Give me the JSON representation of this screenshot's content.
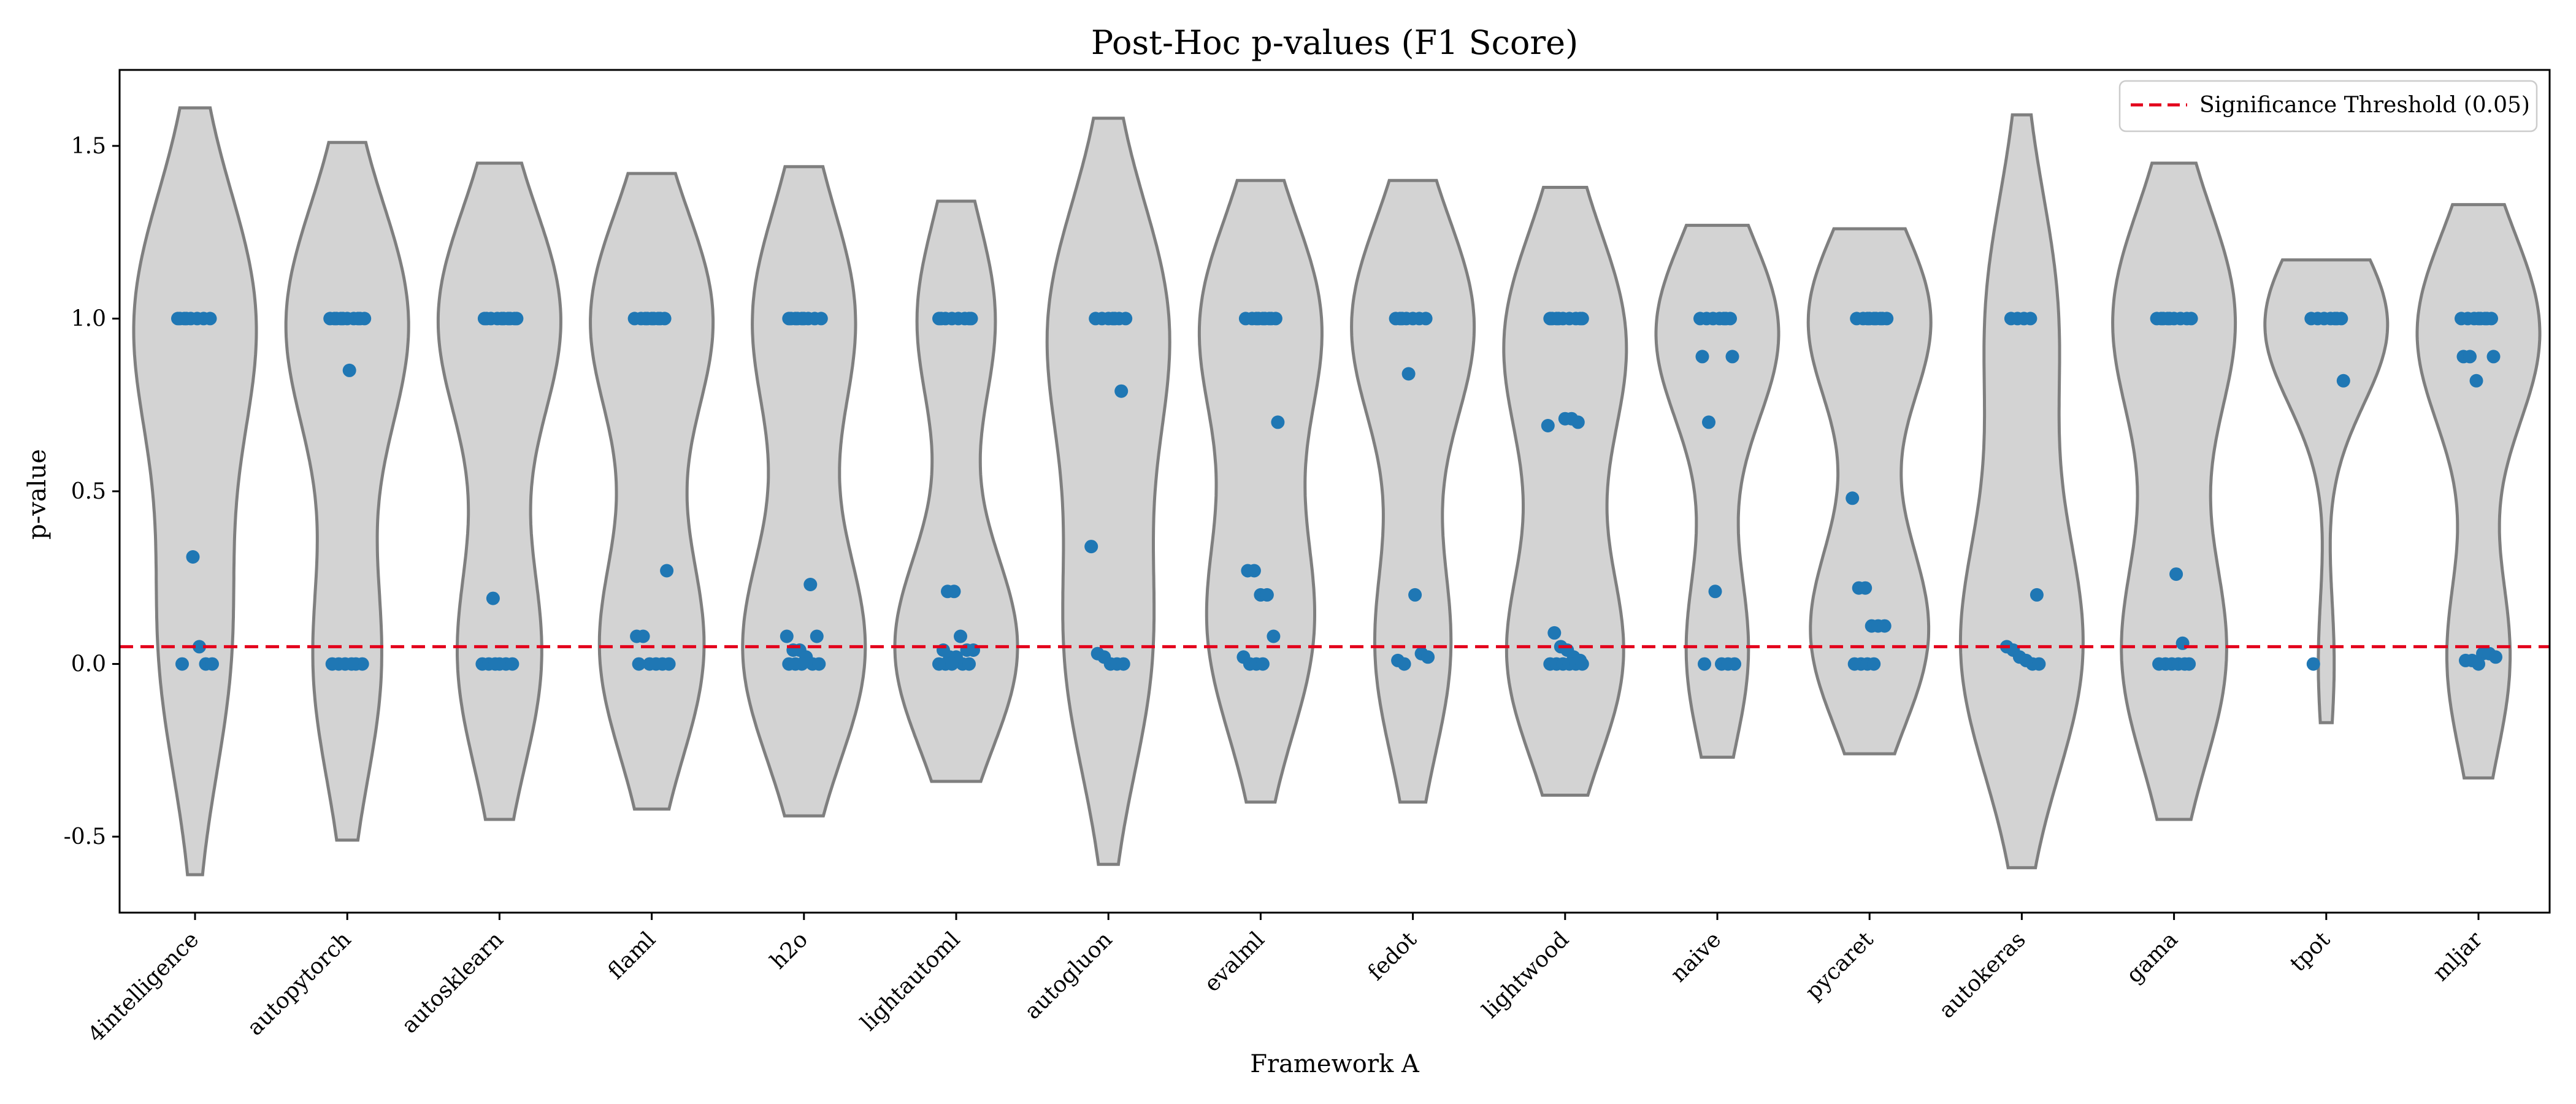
{
  "chart_data": {
    "type": "violin",
    "title": "Post-Hoc p-values (F1 Score)",
    "xlabel": "Framework A",
    "ylabel": "p-value",
    "ylim": [
      -0.72,
      1.72
    ],
    "yticks": [
      -0.5,
      0.0,
      0.5,
      1.0,
      1.5
    ],
    "ytick_labels": [
      "-0.5",
      "0.0",
      "0.5",
      "1.0",
      "1.5"
    ],
    "grid": false,
    "legend": {
      "placement": "top-right",
      "entries": [
        {
          "label": "Significance Threshold (0.05)",
          "style": "dashed",
          "color": "#e3001b"
        }
      ]
    },
    "threshold": {
      "value": 0.05,
      "color": "#e3001b"
    },
    "colors": {
      "violin_fill": "#d3d3d3",
      "violin_edge": "#7f7f7f",
      "point": "#1f77b4"
    },
    "categories": [
      "4intelligence",
      "autopytorch",
      "autosklearn",
      "flaml",
      "h2o",
      "lightautoml",
      "autogluon",
      "evalml",
      "fedot",
      "lightwood",
      "naive",
      "pycaret",
      "autokeras",
      "gama",
      "tpot",
      "mljar"
    ],
    "series": [
      {
        "category": "4intelligence",
        "violin_range": [
          -0.61,
          1.61
        ],
        "points": [
          1,
          1,
          1,
          1,
          1,
          1,
          1,
          1,
          0.31,
          0.05,
          0.0,
          0.0,
          0.0
        ]
      },
      {
        "category": "autopytorch",
        "violin_range": [
          -0.51,
          1.51
        ],
        "points": [
          1,
          1,
          1,
          1,
          1,
          1,
          1,
          1,
          1,
          1,
          0.85,
          0.0,
          0.0,
          0.0,
          0.0,
          0.0,
          0.0
        ]
      },
      {
        "category": "autosklearn",
        "violin_range": [
          -0.45,
          1.45
        ],
        "points": [
          1,
          1,
          1,
          1,
          1,
          1,
          1,
          1,
          1,
          1,
          0.19,
          0.0,
          0.0,
          0.0,
          0.0,
          0.0,
          0.0
        ]
      },
      {
        "category": "flaml",
        "violin_range": [
          -0.42,
          1.42
        ],
        "points": [
          1,
          1,
          1,
          1,
          1,
          1,
          1,
          1,
          1,
          0.27,
          0.08,
          0.08,
          0.0,
          0.0,
          0.0,
          0.0,
          0.0
        ]
      },
      {
        "category": "h2o",
        "violin_range": [
          -0.44,
          1.44
        ],
        "points": [
          1,
          1,
          1,
          1,
          1,
          1,
          1,
          1,
          1,
          0.23,
          0.08,
          0.08,
          0.04,
          0.04,
          0.02,
          0.0,
          0.0,
          0.0,
          0.0,
          0.0
        ]
      },
      {
        "category": "lightautoml",
        "violin_range": [
          -0.34,
          1.34
        ],
        "points": [
          1,
          1,
          1,
          1,
          1,
          1,
          1,
          1,
          0.21,
          0.21,
          0.08,
          0.04,
          0.04,
          0.04,
          0.02,
          0.02,
          0.0,
          0.0,
          0.0,
          0.0,
          0.0
        ]
      },
      {
        "category": "autogluon",
        "violin_range": [
          -0.58,
          1.58
        ],
        "points": [
          1,
          1,
          1,
          1,
          1,
          1,
          1,
          0.79,
          0.34,
          0.03,
          0.02,
          0.0,
          0.0,
          0.0
        ]
      },
      {
        "category": "evalml",
        "violin_range": [
          -0.4,
          1.4
        ],
        "points": [
          1,
          1,
          1,
          1,
          1,
          1,
          1,
          1,
          1,
          0.7,
          0.27,
          0.27,
          0.2,
          0.2,
          0.08,
          0.02,
          0.0,
          0.0,
          0.0
        ]
      },
      {
        "category": "fedot",
        "violin_range": [
          -0.4,
          1.4
        ],
        "points": [
          1,
          1,
          1,
          1,
          1,
          1,
          1,
          0.84,
          0.2,
          0.03,
          0.02,
          0.01,
          0.0
        ]
      },
      {
        "category": "lightwood",
        "violin_range": [
          -0.38,
          1.38
        ],
        "points": [
          1,
          1,
          1,
          1,
          1,
          1,
          1,
          1,
          1,
          0.71,
          0.71,
          0.7,
          0.69,
          0.09,
          0.05,
          0.04,
          0.02,
          0.01,
          0.0,
          0.0,
          0.0,
          0.0,
          0.0,
          0.0
        ]
      },
      {
        "category": "naive",
        "violin_range": [
          -0.27,
          1.27
        ],
        "points": [
          1,
          1,
          1,
          1,
          1,
          1,
          1,
          0.89,
          0.89,
          0.7,
          0.21,
          0.0,
          0.0,
          0.0,
          0.0
        ]
      },
      {
        "category": "pycaret",
        "violin_range": [
          -0.26,
          1.26
        ],
        "points": [
          1,
          1,
          1,
          1,
          1,
          1,
          1,
          1,
          1,
          0.48,
          0.22,
          0.22,
          0.11,
          0.11,
          0.11,
          0.0,
          0.0,
          0.0,
          0.0
        ]
      },
      {
        "category": "autokeras",
        "violin_range": [
          -0.59,
          1.59
        ],
        "points": [
          1,
          1,
          1,
          1,
          0.2,
          0.05,
          0.04,
          0.02,
          0.01,
          0.0,
          0.0
        ]
      },
      {
        "category": "gama",
        "violin_range": [
          -0.45,
          1.45
        ],
        "points": [
          1,
          1,
          1,
          1,
          1,
          1,
          1,
          1,
          1,
          0.26,
          0.06,
          0.0,
          0.0,
          0.0,
          0.0,
          0.0,
          0.0
        ]
      },
      {
        "category": "tpot",
        "violin_range": [
          -0.17,
          1.17
        ],
        "points": [
          1,
          1,
          1,
          1,
          1,
          1,
          1,
          0.82,
          0.0
        ]
      },
      {
        "category": "mljar",
        "violin_range": [
          -0.33,
          1.33
        ],
        "points": [
          1,
          1,
          1,
          1,
          1,
          1,
          1,
          1,
          0.89,
          0.89,
          0.89,
          0.82,
          0.03,
          0.03,
          0.02,
          0.01,
          0.01,
          0.0
        ]
      }
    ]
  }
}
